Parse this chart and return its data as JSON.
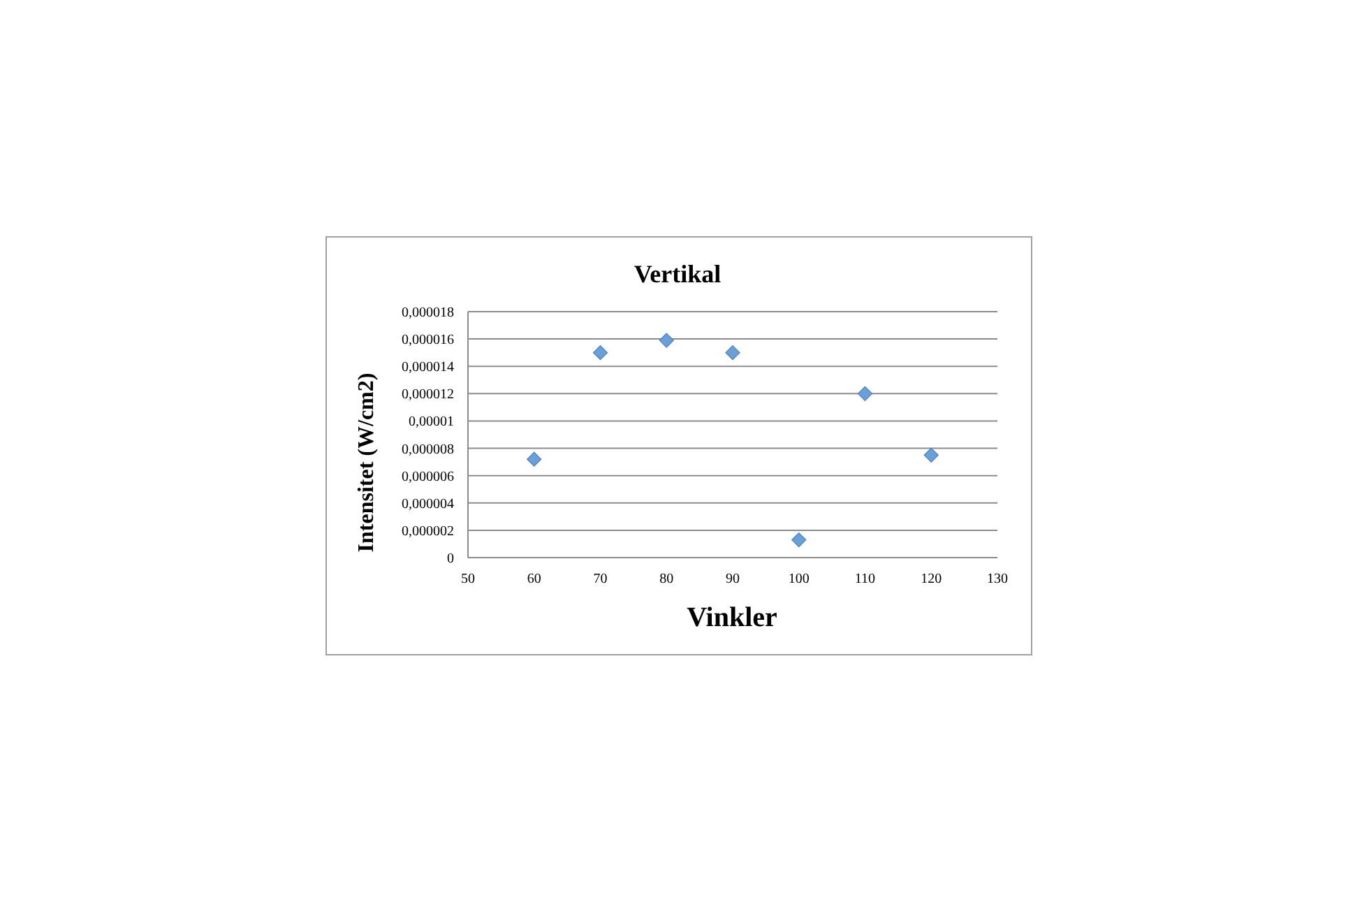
{
  "chart_data": {
    "type": "scatter",
    "title": "Vertikal",
    "xlabel": "Vinkler",
    "ylabel": "Intensitet (W/cm2)",
    "x": [
      60,
      70,
      80,
      90,
      100,
      110,
      120
    ],
    "series": [
      {
        "color": "#6a9fd8",
        "values": [
          7.2e-06,
          1.5e-05,
          1.59e-05,
          1.5e-05,
          1.3e-06,
          1.2e-05,
          7.5e-06
        ]
      }
    ],
    "xlim": [
      50,
      130
    ],
    "xticks": [
      50,
      60,
      70,
      80,
      90,
      100,
      110,
      120,
      130
    ],
    "ylim": [
      0,
      1.8e-05
    ],
    "yticks": [
      0,
      {
        "value": 2e-06,
        "label": "0,000002"
      },
      {
        "value": 4e-06,
        "label": "0,000004"
      },
      {
        "value": 6e-06,
        "label": "0,000006"
      },
      {
        "value": 8e-06,
        "label": "0,000008"
      },
      {
        "value": 1e-05,
        "label": "0,00001"
      },
      {
        "value": 1.2e-05,
        "label": "0,000012"
      },
      {
        "value": 1.4e-05,
        "label": "0,000014"
      },
      {
        "value": 1.6e-05,
        "label": "0,000016"
      },
      {
        "value": 1.8e-05,
        "label": "0,000018"
      }
    ],
    "grid": "y",
    "marker": "diamond"
  }
}
